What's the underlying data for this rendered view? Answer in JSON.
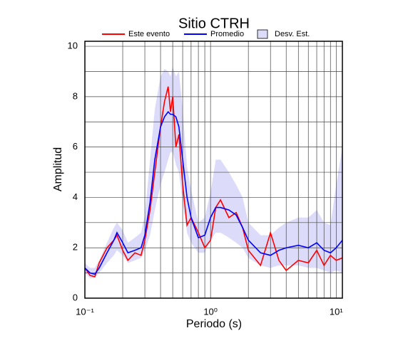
{
  "chart_data": {
    "type": "line",
    "title": "Sitio CTRH",
    "x_label": "Periodo (s)",
    "y_label": "Amplitud",
    "log_x": true,
    "grid": true,
    "x": [
      0.1,
      0.11,
      0.12,
      0.13,
      0.15,
      0.17,
      0.18,
      0.2,
      0.22,
      0.25,
      0.28,
      0.3,
      0.33,
      0.36,
      0.4,
      0.43,
      0.46,
      0.48,
      0.5,
      0.53,
      0.56,
      0.6,
      0.65,
      0.7,
      0.8,
      0.9,
      1.0,
      1.1,
      1.2,
      1.4,
      1.6,
      1.8,
      2.0,
      2.5,
      3.0,
      3.5,
      4,
      5,
      6,
      7,
      8,
      9,
      10,
      11.2
    ],
    "series": [
      {
        "name": "Este evento",
        "color": "#ff0000",
        "values": [
          1.2,
          0.9,
          0.85,
          1.4,
          2.0,
          2.3,
          2.5,
          1.9,
          1.5,
          1.8,
          1.7,
          2.3,
          3.5,
          5.0,
          6.8,
          7.8,
          8.4,
          7.4,
          8.0,
          6.0,
          6.5,
          4.5,
          2.9,
          3.2,
          2.6,
          2.0,
          2.3,
          3.6,
          3.9,
          3.2,
          3.4,
          2.8,
          1.9,
          1.3,
          2.6,
          1.5,
          1.1,
          1.5,
          1.4,
          1.9,
          1.3,
          1.7,
          1.5,
          1.6
        ]
      },
      {
        "name": "Promedio",
        "color": "#0000ff",
        "values": [
          1.2,
          1.0,
          0.95,
          1.2,
          1.8,
          2.3,
          2.6,
          2.2,
          1.8,
          1.9,
          2.0,
          2.5,
          3.8,
          5.5,
          6.8,
          7.2,
          7.4,
          7.3,
          7.3,
          7.2,
          6.8,
          5.5,
          4.0,
          3.2,
          2.4,
          2.5,
          3.2,
          3.6,
          3.6,
          3.5,
          3.3,
          2.8,
          2.3,
          1.8,
          1.7,
          1.9,
          2.0,
          2.1,
          2.0,
          2.2,
          1.9,
          1.8,
          2.0,
          2.3
        ]
      }
    ],
    "band": {
      "name": "Desv. Est.",
      "color": "#dcdcfa",
      "lower": [
        1.0,
        0.8,
        0.8,
        1.0,
        1.4,
        1.7,
        1.9,
        1.7,
        1.4,
        1.5,
        1.6,
        1.9,
        2.5,
        3.5,
        4.5,
        5.0,
        5.5,
        5.8,
        5.8,
        5.3,
        5.0,
        3.8,
        2.6,
        2.2,
        1.8,
        1.8,
        2.3,
        2.6,
        2.6,
        2.4,
        2.2,
        2.0,
        1.6,
        1.3,
        1.2,
        1.3,
        1.3,
        1.3,
        1.2,
        1.2,
        1.1,
        1.0,
        1.1,
        1.0
      ],
      "upper": [
        1.4,
        1.2,
        1.2,
        1.5,
        2.2,
        2.8,
        3.0,
        2.7,
        2.2,
        2.4,
        2.6,
        3.3,
        5.5,
        7.5,
        8.8,
        9.1,
        9.0,
        8.8,
        9.2,
        8.8,
        9.0,
        7.5,
        5.2,
        4.3,
        3.0,
        3.2,
        4.2,
        5.5,
        5.5,
        5.0,
        4.5,
        4.0,
        3.0,
        2.5,
        2.5,
        2.8,
        3.0,
        3.2,
        3.2,
        3.5,
        3.0,
        2.9,
        4.5,
        6.0
      ]
    },
    "xlim": [
      0.1,
      11.2
    ],
    "ylim": [
      0,
      10.2
    ],
    "xticks": [
      {
        "value": 0.1,
        "label": "10⁻¹"
      },
      {
        "value": 1,
        "label": "10⁰"
      },
      {
        "value": 10,
        "label": "10¹"
      }
    ],
    "xminor": [
      0.2,
      0.3,
      0.4,
      0.5,
      0.6,
      0.7,
      0.8,
      0.9,
      2,
      3,
      4,
      5,
      6,
      7,
      8,
      9
    ],
    "yticks": [
      0,
      2,
      4,
      6,
      8,
      10
    ],
    "yminor": [
      1,
      3,
      5,
      7,
      9
    ]
  }
}
